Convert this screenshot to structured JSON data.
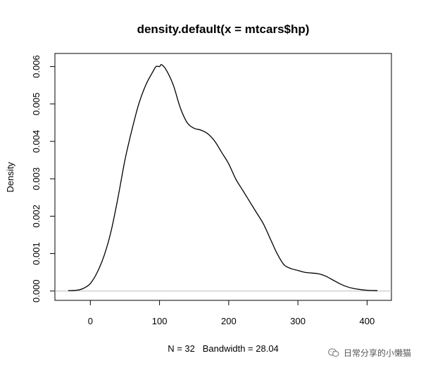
{
  "chart_data": {
    "type": "line",
    "title": "density.default(x = mtcars$hp)",
    "xlabel": "N = 32   Bandwidth = 28.04",
    "ylabel": "Density",
    "xlim": [
      -51.2,
      435.2
    ],
    "ylim": [
      -0.00025,
      0.00635
    ],
    "x_ticks": [
      0,
      100,
      200,
      300,
      400
    ],
    "x_tick_labels": [
      "0",
      "100",
      "200",
      "300",
      "400"
    ],
    "y_ticks": [
      0.0,
      0.001,
      0.002,
      0.003,
      0.004,
      0.005,
      0.006
    ],
    "y_tick_labels": [
      "0.000",
      "0.001",
      "0.002",
      "0.003",
      "0.004",
      "0.005",
      "0.006"
    ],
    "baseline": 0,
    "grid": false,
    "series": [
      {
        "color": "#000000",
        "x": [
          -32,
          -20,
          -10,
          0,
          10,
          20,
          30,
          40,
          50,
          60,
          70,
          80,
          90,
          95,
          100,
          103,
          110,
          120,
          130,
          140,
          150,
          160,
          170,
          180,
          190,
          200,
          210,
          220,
          230,
          240,
          250,
          260,
          270,
          280,
          290,
          300,
          310,
          320,
          330,
          340,
          350,
          360,
          370,
          380,
          390,
          400,
          415
        ],
        "y": [
          1e-05,
          2e-05,
          7e-05,
          0.0002,
          0.0005,
          0.00095,
          0.0016,
          0.0025,
          0.0035,
          0.0043,
          0.005,
          0.0055,
          0.00585,
          0.006,
          0.006,
          0.00605,
          0.0059,
          0.0055,
          0.0049,
          0.0045,
          0.00435,
          0.0043,
          0.0042,
          0.004,
          0.0037,
          0.0034,
          0.003,
          0.0027,
          0.0024,
          0.0021,
          0.0018,
          0.0014,
          0.001,
          0.0007,
          0.0006,
          0.00055,
          0.0005,
          0.00048,
          0.00046,
          0.0004,
          0.0003,
          0.0002,
          0.00012,
          7e-05,
          4e-05,
          2e-05,
          1e-05
        ]
      }
    ]
  },
  "watermark": {
    "text": "日常分享的小懒猫",
    "icon": "wechat-icon"
  }
}
